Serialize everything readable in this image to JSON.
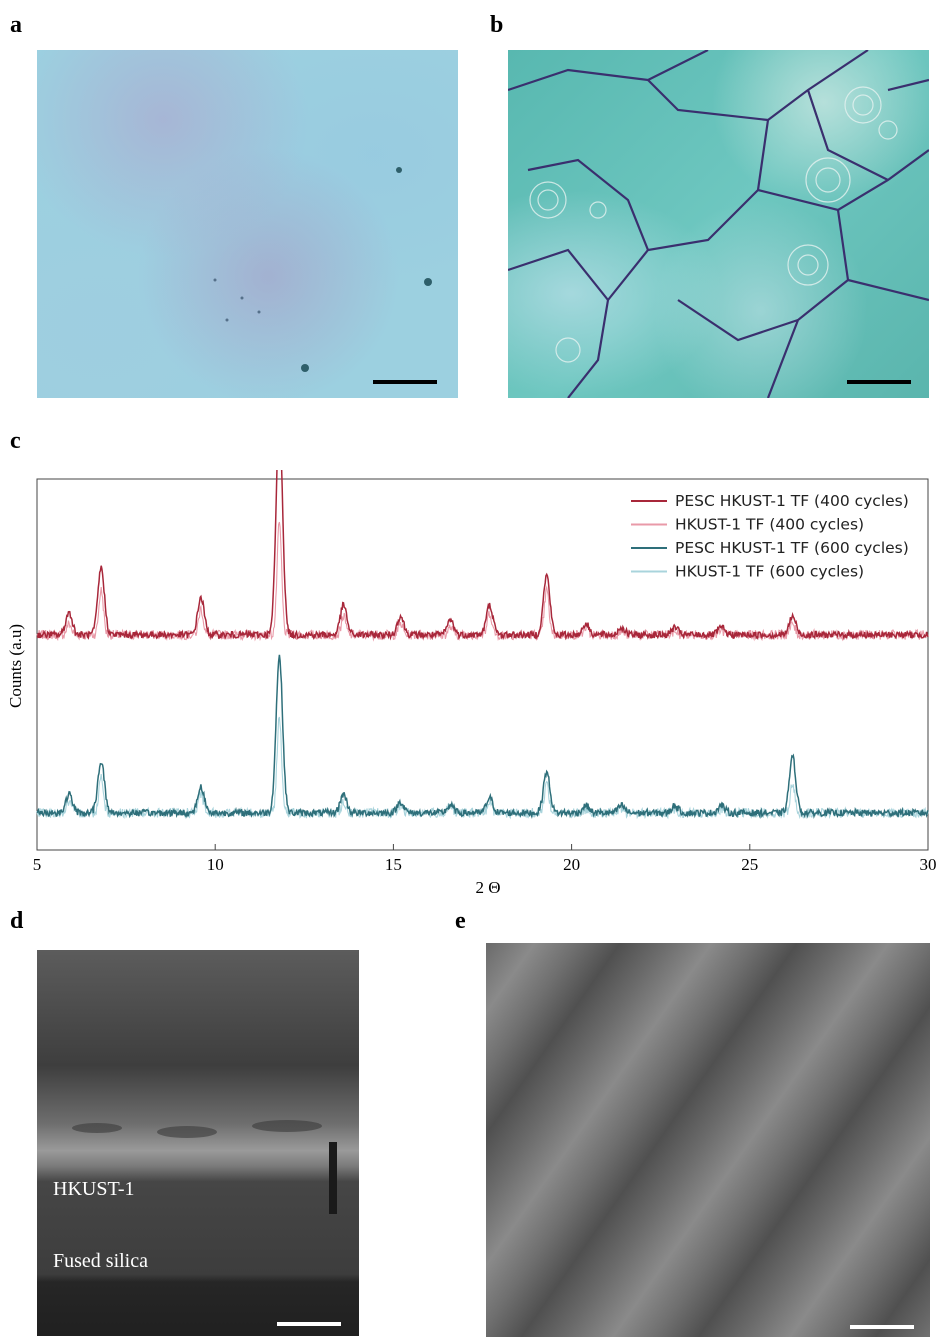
{
  "panels": {
    "a": "a",
    "b": "b",
    "c": "c",
    "d": "d",
    "e": "e"
  },
  "images": {
    "d_labels": {
      "top_layer": "HKUST-1",
      "substrate": "Fused silica"
    }
  },
  "chart_data": {
    "type": "line",
    "xlabel": "2 Θ",
    "ylabel": "Counts (a.u)",
    "xlim": [
      5,
      30
    ],
    "xticks": [
      "5",
      "10",
      "15",
      "20",
      "25",
      "30"
    ],
    "grid": false,
    "legend_position": "top-right",
    "peaks_2theta": [
      5.9,
      6.8,
      9.6,
      11.8,
      13.6,
      15.2,
      16.6,
      17.7,
      19.3,
      20.4,
      21.4,
      22.9,
      24.2,
      26.2
    ],
    "series": [
      {
        "name": "PESC HKUST-1 TF (400 cycles)",
        "color": "#a8273a",
        "baseline": 0.58,
        "peak_heights": [
          0.06,
          0.18,
          0.1,
          0.58,
          0.08,
          0.05,
          0.04,
          0.08,
          0.16,
          0.03,
          0.02,
          0.02,
          0.02,
          0.05
        ]
      },
      {
        "name": "HKUST-1 TF (400 cycles)",
        "color": "#e99aa8",
        "baseline": 0.58,
        "peak_heights": [
          0.03,
          0.12,
          0.07,
          0.3,
          0.05,
          0.03,
          0.02,
          0.06,
          0.12,
          0.02,
          0.01,
          0.01,
          0.01,
          0.03
        ]
      },
      {
        "name": "PESC HKUST-1 TF (600 cycles)",
        "color": "#2e6f7a",
        "baseline": 0.1,
        "peak_heights": [
          0.05,
          0.14,
          0.07,
          0.42,
          0.05,
          0.03,
          0.02,
          0.04,
          0.11,
          0.02,
          0.02,
          0.02,
          0.02,
          0.15
        ]
      },
      {
        "name": "HKUST-1 TF (600 cycles)",
        "color": "#a9d4dc",
        "baseline": 0.1,
        "peak_heights": [
          0.03,
          0.1,
          0.05,
          0.26,
          0.03,
          0.02,
          0.02,
          0.03,
          0.08,
          0.01,
          0.01,
          0.01,
          0.01,
          0.08
        ]
      }
    ]
  }
}
